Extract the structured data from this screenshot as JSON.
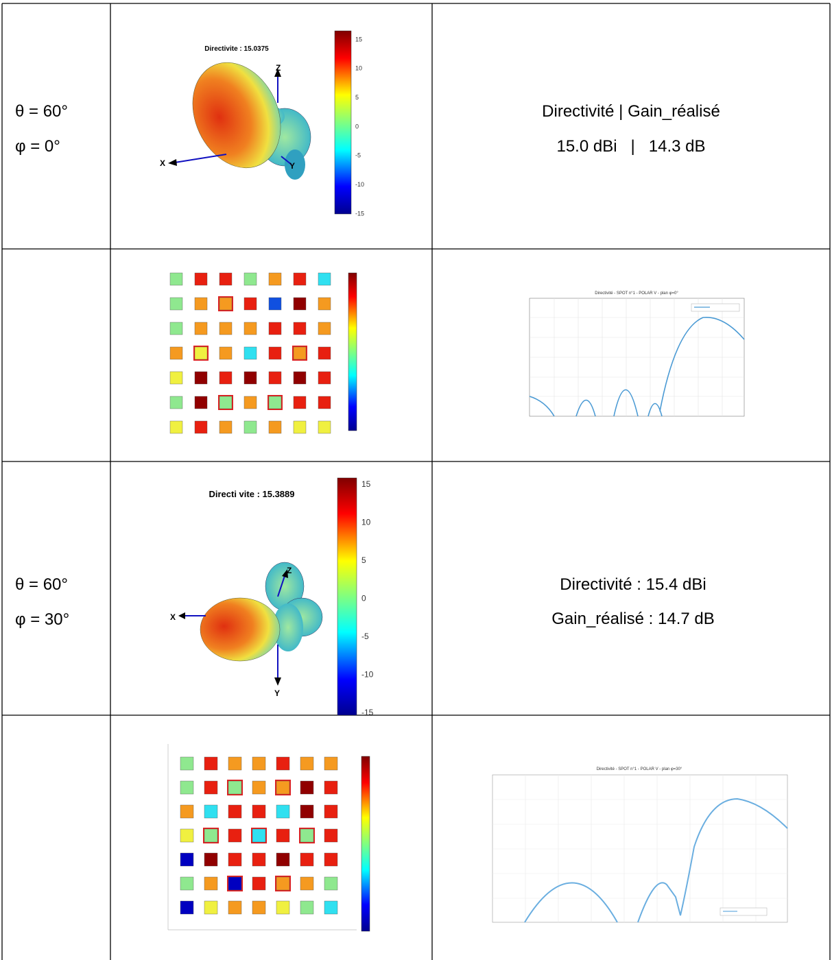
{
  "table": {
    "rows": [
      {
        "parameters": [
          "θ = 60°",
          "φ = 0°"
        ],
        "figure": {
          "title": "Directivite : 15.0375",
          "colorbar_ticks": [
            15,
            10,
            5,
            0,
            -5,
            -10,
            -15
          ],
          "axis_labels": [
            "Z",
            "X",
            "Y"
          ]
        },
        "result": [
          "Directivité | Gain_réalisé",
          "15.0 dBi   |   14.3 dB"
        ]
      },
      {
        "plot_title": "Directivité - SPOT n°1 - POLAR V - plan φ=0°"
      },
      {
        "parameters": [
          "θ = 60°",
          "φ = 30°"
        ],
        "figure": {
          "title": "Directi vite : 15.3889",
          "colorbar_ticks": [
            15,
            10,
            5,
            0,
            -5,
            -10,
            -15
          ],
          "axis_labels": [
            "Z",
            "X",
            "Y"
          ]
        },
        "result": [
          "Directivité : 15.4 dBi",
          "Gain_réalisé : 14.7 dB"
        ]
      },
      {
        "plot_title": "Directivité - SPOT n°1 - POLAR V - plan φ=30°"
      }
    ]
  }
}
